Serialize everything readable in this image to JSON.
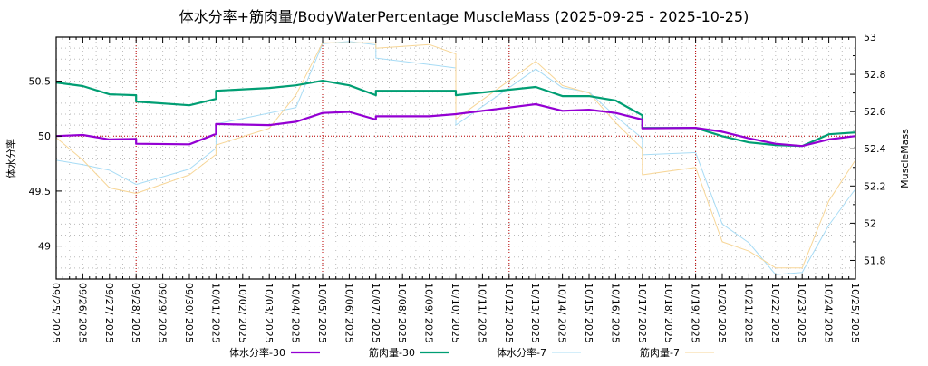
{
  "chart_data": {
    "type": "line",
    "title": "体水分率+筋肉量/BodyWaterPercentage MuscleMass (2025-09-25 - 2025-10-25)",
    "ylabel": "体水分率",
    "y2label": "MuscleMass",
    "ylim": [
      48.7,
      50.9
    ],
    "y2lim": [
      51.7,
      53.0
    ],
    "yticks": [
      "49",
      "49.5",
      "50",
      "50.5"
    ],
    "yticks_values": [
      49,
      49.5,
      50,
      50.5
    ],
    "y2ticks": [
      "51.8",
      "52",
      "52.2",
      "52.4",
      "52.6",
      "52.8",
      "53"
    ],
    "y2ticks_values": [
      51.8,
      52,
      52.2,
      52.4,
      52.6,
      52.8,
      53
    ],
    "x_categories": [
      "09/25/ 2025",
      "09/26/ 2025",
      "09/27/ 2025",
      "09/28/ 2025",
      "09/29/ 2025",
      "09/30/ 2025",
      "10/01/ 2025",
      "10/02/ 2025",
      "10/03/ 2025",
      "10/04/ 2025",
      "10/05/ 2025",
      "10/06/ 2025",
      "10/07/ 2025",
      "10/08/ 2025",
      "10/09/ 2025",
      "10/10/ 2025",
      "10/11/ 2025",
      "10/12/ 2025",
      "10/13/ 2025",
      "10/14/ 2025",
      "10/15/ 2025",
      "10/16/ 2025",
      "10/17/ 2025",
      "10/18/ 2025",
      "10/19/ 2025",
      "10/20/ 2025",
      "10/21/ 2025",
      "10/22/ 2025",
      "10/23/ 2025",
      "10/24/ 2025",
      "10/25/ 2025"
    ],
    "major_x_gridlines_day_index": [
      3,
      10,
      17,
      24
    ],
    "major_y_gridline": 50,
    "grid": true,
    "legend_placement": "bottom",
    "series": [
      {
        "name": "体水分率-30",
        "axis": "y",
        "color": "#9400d3",
        "width": 2.2,
        "opacity": 1,
        "points": [
          [
            0,
            50.0
          ],
          [
            1,
            50.01
          ],
          [
            2,
            49.97
          ],
          [
            3,
            49.975
          ],
          [
            3,
            49.93
          ],
          [
            5,
            49.925
          ],
          [
            6,
            50.02
          ],
          [
            6,
            50.11
          ],
          [
            8,
            50.1
          ],
          [
            9,
            50.13
          ],
          [
            10,
            50.21
          ],
          [
            11,
            50.22
          ],
          [
            12,
            50.15
          ],
          [
            12,
            50.18
          ],
          [
            14,
            50.18
          ],
          [
            15,
            50.2
          ],
          [
            17,
            50.26
          ],
          [
            18,
            50.29
          ],
          [
            19,
            50.23
          ],
          [
            20,
            50.24
          ],
          [
            21,
            50.21
          ],
          [
            22,
            50.15
          ],
          [
            22,
            50.07
          ],
          [
            24,
            50.075
          ],
          [
            25,
            50.04
          ],
          [
            26,
            49.98
          ],
          [
            27,
            49.93
          ],
          [
            28,
            49.91
          ],
          [
            29,
            49.97
          ],
          [
            30,
            50.0
          ]
        ]
      },
      {
        "name": "筋肉量-30",
        "axis": "y2",
        "color": "#009e73",
        "width": 2.2,
        "opacity": 1,
        "points": [
          [
            0,
            52.756
          ],
          [
            1,
            52.737
          ],
          [
            2,
            52.693
          ],
          [
            3,
            52.688
          ],
          [
            3,
            52.654
          ],
          [
            5,
            52.634
          ],
          [
            6,
            52.668
          ],
          [
            6,
            52.712
          ],
          [
            8,
            52.727
          ],
          [
            9,
            52.741
          ],
          [
            10,
            52.766
          ],
          [
            11,
            52.741
          ],
          [
            12,
            52.688
          ],
          [
            12,
            52.712
          ],
          [
            15,
            52.712
          ],
          [
            15,
            52.688
          ],
          [
            18,
            52.732
          ],
          [
            19,
            52.683
          ],
          [
            20,
            52.683
          ],
          [
            21,
            52.659
          ],
          [
            22,
            52.58
          ],
          [
            22,
            52.512
          ],
          [
            24,
            52.512
          ],
          [
            25,
            52.468
          ],
          [
            26,
            52.434
          ],
          [
            27,
            52.42
          ],
          [
            28,
            52.415
          ],
          [
            29,
            52.478
          ],
          [
            30,
            52.488
          ]
        ]
      },
      {
        "name": "体水分率-7",
        "axis": "y",
        "color": "#a8dcf5",
        "width": 1,
        "opacity": 1,
        "points": [
          [
            0,
            49.78
          ],
          [
            1,
            49.74
          ],
          [
            2,
            49.69
          ],
          [
            3,
            49.56
          ],
          [
            5,
            49.7
          ],
          [
            6,
            49.89
          ],
          [
            6,
            50.11
          ],
          [
            9,
            50.26
          ],
          [
            10,
            50.84
          ],
          [
            11,
            50.86
          ],
          [
            12,
            50.83
          ],
          [
            12,
            50.71
          ],
          [
            14,
            50.65
          ],
          [
            15,
            50.62
          ],
          [
            15,
            50.1
          ],
          [
            18,
            50.61
          ],
          [
            19,
            50.44
          ],
          [
            20,
            50.4
          ],
          [
            21,
            50.18
          ],
          [
            22,
            49.98
          ],
          [
            22,
            49.83
          ],
          [
            24,
            49.85
          ],
          [
            25,
            49.2
          ],
          [
            26,
            49.03
          ],
          [
            27,
            48.74
          ],
          [
            28,
            48.76
          ],
          [
            29,
            49.19
          ],
          [
            30,
            49.52
          ]
        ]
      },
      {
        "name": "筋肉量-7",
        "axis": "y2",
        "color": "#f7d697",
        "width": 1,
        "opacity": 1,
        "points": [
          [
            0,
            52.46
          ],
          [
            1,
            52.34
          ],
          [
            2,
            52.19
          ],
          [
            3,
            52.16
          ],
          [
            5,
            52.26
          ],
          [
            6,
            52.37
          ],
          [
            6,
            52.42
          ],
          [
            8,
            52.51
          ],
          [
            9,
            52.69
          ],
          [
            10,
            52.97
          ],
          [
            12,
            52.97
          ],
          [
            12,
            52.94
          ],
          [
            14,
            52.96
          ],
          [
            15,
            52.91
          ],
          [
            15,
            52.56
          ],
          [
            18,
            52.87
          ],
          [
            19,
            52.74
          ],
          [
            20,
            52.7
          ],
          [
            21,
            52.54
          ],
          [
            22,
            52.4
          ],
          [
            22,
            52.26
          ],
          [
            24,
            52.3
          ],
          [
            25,
            51.9
          ],
          [
            26,
            51.85
          ],
          [
            27,
            51.76
          ],
          [
            28,
            51.76
          ],
          [
            29,
            52.12
          ],
          [
            30,
            52.34
          ]
        ]
      }
    ]
  }
}
